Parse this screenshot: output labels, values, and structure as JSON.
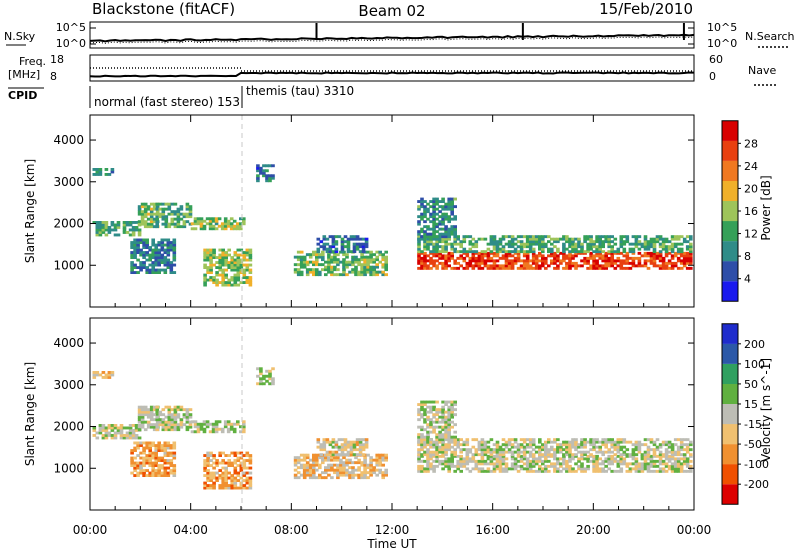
{
  "header": {
    "station": "Blackstone (fitACF)",
    "beam": "Beam 02",
    "date": "15/Feb/2010"
  },
  "summary_panels": {
    "noise": {
      "left_label": "N.Sky",
      "right_label": "N.Search",
      "left_ticks": [
        "10^5",
        "10^0"
      ],
      "right_ticks": [
        "10^5",
        "10^0"
      ]
    },
    "freq": {
      "left_label_1": "Freq.",
      "left_label_2": "[MHz]",
      "right_label": "Nave",
      "left_ticks": [
        "18",
        "8"
      ],
      "right_ticks": [
        "60",
        "0"
      ]
    },
    "cpid": {
      "label": "CPID",
      "modes": [
        "normal (fast stereo) 153",
        "themis (tau) 3310"
      ]
    }
  },
  "x_axis": {
    "label": "Time UT",
    "ticks": [
      "00:00",
      "04:00",
      "08:00",
      "12:00",
      "16:00",
      "20:00",
      "00:00"
    ]
  },
  "colors": {
    "power": [
      "#1a1aee",
      "#2e4ea8",
      "#2f8c88",
      "#35a058",
      "#9ec45a",
      "#f0b02a",
      "#f07820",
      "#e84010",
      "#d80000"
    ],
    "velocity": [
      "#dc0000",
      "#f05000",
      "#f09030",
      "#f0c070",
      "#bdbdb5",
      "#60b040",
      "#30a060",
      "#2b58a8",
      "#1f2ccc"
    ]
  },
  "chart_data": [
    {
      "type": "heatmap",
      "title": "Power",
      "ylabel": "Slant Range [km]",
      "xlabel": "",
      "x_range_hours": [
        0,
        24
      ],
      "ylim": [
        0,
        4600
      ],
      "yticks": [
        1000,
        2000,
        3000,
        4000
      ],
      "colorbar": {
        "label": "Power [dB]",
        "range": [
          0,
          32
        ],
        "ticks": [
          4,
          8,
          12,
          16,
          20,
          24,
          28
        ]
      },
      "bands": [
        {
          "t": [
            0.1,
            0.9
          ],
          "r": [
            3150,
            3300
          ],
          "v": 10
        },
        {
          "t": [
            0.1,
            2.0
          ],
          "r": [
            1700,
            2050
          ],
          "v": 12
        },
        {
          "t": [
            1.9,
            2.7
          ],
          "r": [
            1900,
            2500
          ],
          "v": 14
        },
        {
          "t": [
            2.6,
            4.0
          ],
          "r": [
            1900,
            2450
          ],
          "v": 12
        },
        {
          "t": [
            4.0,
            6.1
          ],
          "r": [
            1850,
            2150
          ],
          "v": 15
        },
        {
          "t": [
            1.6,
            3.3
          ],
          "r": [
            800,
            1600
          ],
          "v": 8
        },
        {
          "t": [
            4.5,
            6.4
          ],
          "r": [
            500,
            1400
          ],
          "v": 16
        },
        {
          "t": [
            6.6,
            7.3
          ],
          "r": [
            3000,
            3400
          ],
          "v": 8
        },
        {
          "t": [
            8.1,
            11.8
          ],
          "r": [
            750,
            1300
          ],
          "v": 14
        },
        {
          "t": [
            9.0,
            11.0
          ],
          "r": [
            1300,
            1700
          ],
          "v": 7
        },
        {
          "t": [
            13.0,
            23.9
          ],
          "r": [
            900,
            1300
          ],
          "v": 27
        },
        {
          "t": [
            13.0,
            23.9
          ],
          "r": [
            1300,
            1700
          ],
          "v": 12
        },
        {
          "t": [
            13.0,
            14.5
          ],
          "r": [
            1600,
            2600
          ],
          "v": 10
        }
      ]
    },
    {
      "type": "heatmap",
      "title": "Velocity",
      "ylabel": "Slant Range [km]",
      "xlabel": "Time UT",
      "x_range_hours": [
        0,
        24
      ],
      "ylim": [
        0,
        4600
      ],
      "yticks": [
        1000,
        2000,
        3000,
        4000
      ],
      "colorbar": {
        "label": "Velocity [m s^-1]",
        "range": [
          -250,
          250
        ],
        "ticks": [
          200,
          100,
          50,
          15,
          -15,
          -50,
          -100,
          -200
        ]
      },
      "bands": [
        {
          "t": [
            0.1,
            0.9
          ],
          "r": [
            3150,
            3300
          ],
          "v": -40
        },
        {
          "t": [
            0.1,
            2.0
          ],
          "r": [
            1700,
            2050
          ],
          "v": 0
        },
        {
          "t": [
            1.9,
            2.7
          ],
          "r": [
            1900,
            2500
          ],
          "v": 0
        },
        {
          "t": [
            2.6,
            4.0
          ],
          "r": [
            1900,
            2450
          ],
          "v": 0
        },
        {
          "t": [
            4.0,
            6.1
          ],
          "r": [
            1850,
            2150
          ],
          "v": 0
        },
        {
          "t": [
            1.6,
            3.3
          ],
          "r": [
            800,
            1600
          ],
          "v": -90
        },
        {
          "t": [
            4.5,
            6.4
          ],
          "r": [
            500,
            1400
          ],
          "v": -90
        },
        {
          "t": [
            6.6,
            7.3
          ],
          "r": [
            3000,
            3400
          ],
          "v": 0
        },
        {
          "t": [
            8.1,
            11.8
          ],
          "r": [
            750,
            1300
          ],
          "v": -60
        },
        {
          "t": [
            9.0,
            11.0
          ],
          "r": [
            1300,
            1700
          ],
          "v": -30
        },
        {
          "t": [
            13.0,
            23.9
          ],
          "r": [
            900,
            1300
          ],
          "v": 0
        },
        {
          "t": [
            13.0,
            23.9
          ],
          "r": [
            1300,
            1700
          ],
          "v": 0
        },
        {
          "t": [
            13.0,
            14.5
          ],
          "r": [
            1600,
            2600
          ],
          "v": 0
        }
      ]
    }
  ]
}
